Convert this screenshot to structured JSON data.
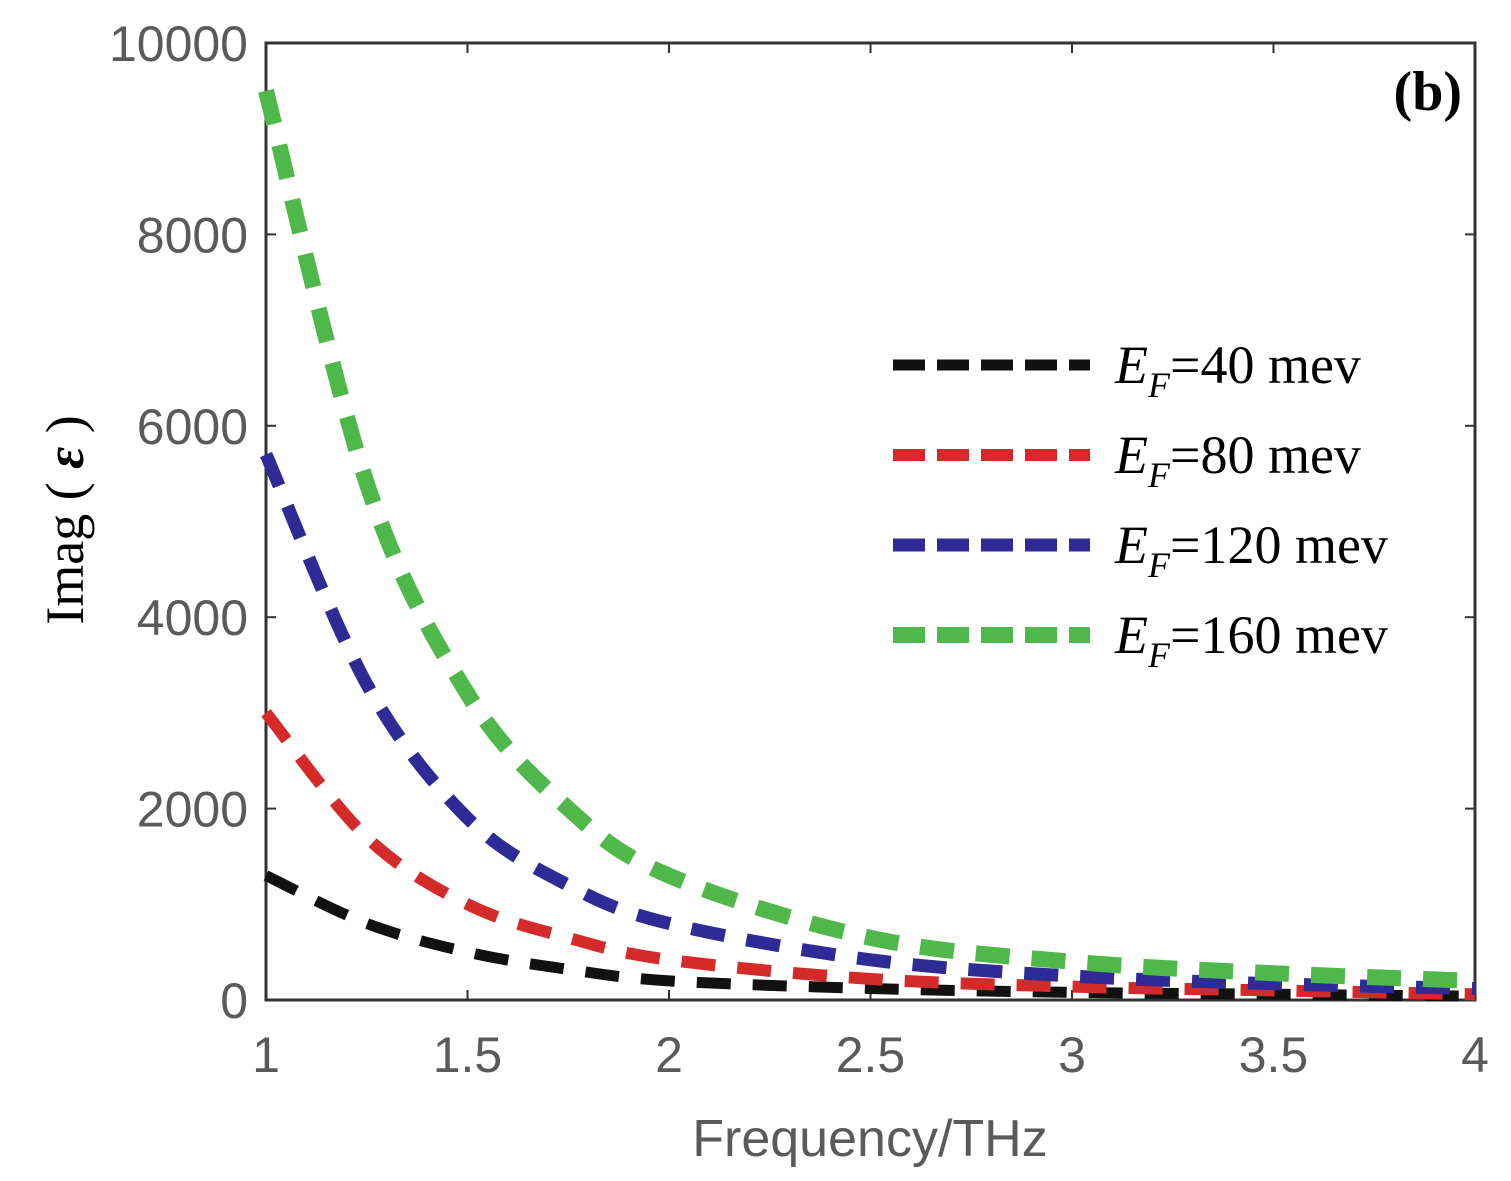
{
  "chart_data": {
    "type": "line",
    "panel_label": "(b)",
    "xlabel": "Frequency/THz",
    "ylabel": {
      "text": "Imag",
      "symbol": "ε"
    },
    "xlim": [
      1,
      4
    ],
    "ylim": [
      0,
      10000
    ],
    "xticks": [
      1,
      1.5,
      2,
      2.5,
      3,
      3.5,
      4
    ],
    "xtick_labels": [
      "1",
      "1.5",
      "2",
      "2.5",
      "3",
      "3.5",
      "4"
    ],
    "yticks": [
      0,
      2000,
      4000,
      6000,
      8000,
      10000
    ],
    "ytick_labels": [
      "0",
      "2000",
      "4000",
      "6000",
      "8000",
      "10000"
    ],
    "legend_position": "center-right",
    "series": [
      {
        "name": "E_F=40 mev",
        "legend_main": "E",
        "legend_sub": "F",
        "legend_rest": "=40 mev",
        "color": "#111111",
        "width": 11,
        "x": [
          1,
          1.25,
          1.5,
          1.75,
          2,
          2.5,
          3,
          3.5,
          4
        ],
        "y": [
          1300,
          800,
          500,
          320,
          200,
          120,
          80,
          60,
          40
        ]
      },
      {
        "name": "E_F=80 mev",
        "legend_main": "E",
        "legend_sub": "F",
        "legend_rest": "=80 mev",
        "color": "#d42a2a",
        "width": 12,
        "x": [
          1,
          1.25,
          1.5,
          1.75,
          2,
          2.5,
          3,
          3.5,
          4
        ],
        "y": [
          3000,
          1700,
          1000,
          650,
          420,
          220,
          140,
          100,
          60
        ]
      },
      {
        "name": "E_F=120 mev",
        "legend_main": "E",
        "legend_sub": "F",
        "legend_rest": "=120 mev",
        "color": "#2e2a96",
        "width": 13,
        "x": [
          1,
          1.25,
          1.5,
          1.75,
          2,
          2.5,
          3,
          3.5,
          4
        ],
        "y": [
          5700,
          3300,
          1900,
          1200,
          800,
          420,
          250,
          170,
          120
        ]
      },
      {
        "name": "E_F=160 mev",
        "legend_main": "E",
        "legend_sub": "F",
        "legend_rest": "=160 mev",
        "color": "#4fb84a",
        "width": 16,
        "x": [
          1,
          1.25,
          1.5,
          1.75,
          2,
          2.5,
          3,
          3.5,
          4
        ],
        "y": [
          9500,
          5400,
          3200,
          2000,
          1300,
          650,
          400,
          280,
          200
        ]
      }
    ]
  }
}
